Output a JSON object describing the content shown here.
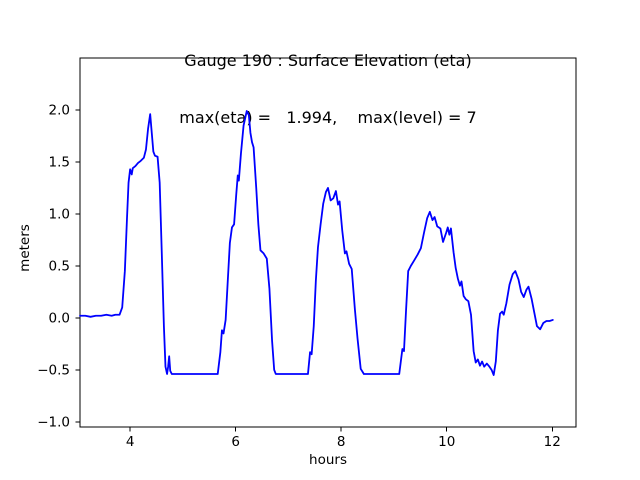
{
  "chart_data": {
    "type": "line",
    "title": "Gauge 190 : Surface Elevation (eta)",
    "subtitle": "max(eta) =   1.994,    max(level) = 7",
    "xlabel": "hours",
    "ylabel": "meters",
    "xlim": [
      3.05,
      12.45
    ],
    "ylim": [
      -1.05,
      2.5
    ],
    "xticks": [
      4,
      6,
      8,
      10,
      12
    ],
    "xtick_labels": [
      "4",
      "6",
      "8",
      "10",
      "12"
    ],
    "yticks": [
      -1.0,
      -0.5,
      0.0,
      0.5,
      1.0,
      1.5,
      2.0
    ],
    "ytick_labels": [
      "−1.0",
      "−0.5",
      "0.0",
      "0.5",
      "1.0",
      "1.5",
      "2.0"
    ],
    "grid": false,
    "legend_position": "none",
    "line_color": "#0000ff",
    "axis_color": "#000000",
    "background_color": "#ffffff",
    "max_eta": 1.994,
    "max_level": 7,
    "series": [
      {
        "name": "eta",
        "points": [
          [
            3.05,
            0.02
          ],
          [
            3.15,
            0.02
          ],
          [
            3.25,
            0.01
          ],
          [
            3.35,
            0.02
          ],
          [
            3.45,
            0.02
          ],
          [
            3.55,
            0.03
          ],
          [
            3.65,
            0.02
          ],
          [
            3.72,
            0.03
          ],
          [
            3.8,
            0.03
          ],
          [
            3.85,
            0.1
          ],
          [
            3.9,
            0.45
          ],
          [
            3.94,
            0.95
          ],
          [
            3.97,
            1.3
          ],
          [
            4.0,
            1.43
          ],
          [
            4.03,
            1.38
          ],
          [
            4.05,
            1.44
          ],
          [
            4.1,
            1.46
          ],
          [
            4.15,
            1.49
          ],
          [
            4.2,
            1.51
          ],
          [
            4.26,
            1.54
          ],
          [
            4.3,
            1.62
          ],
          [
            4.34,
            1.82
          ],
          [
            4.38,
            1.96
          ],
          [
            4.41,
            1.78
          ],
          [
            4.44,
            1.6
          ],
          [
            4.47,
            1.56
          ],
          [
            4.52,
            1.55
          ],
          [
            4.56,
            1.3
          ],
          [
            4.6,
            0.62
          ],
          [
            4.64,
            -0.08
          ],
          [
            4.67,
            -0.47
          ],
          [
            4.7,
            -0.54
          ],
          [
            4.72,
            -0.47
          ],
          [
            4.74,
            -0.37
          ],
          [
            4.76,
            -0.51
          ],
          [
            4.79,
            -0.54
          ],
          [
            4.95,
            -0.54
          ],
          [
            5.15,
            -0.54
          ],
          [
            5.35,
            -0.54
          ],
          [
            5.55,
            -0.54
          ],
          [
            5.66,
            -0.54
          ],
          [
            5.71,
            -0.33
          ],
          [
            5.74,
            -0.12
          ],
          [
            5.77,
            -0.15
          ],
          [
            5.81,
            -0.02
          ],
          [
            5.85,
            0.35
          ],
          [
            5.89,
            0.72
          ],
          [
            5.93,
            0.87
          ],
          [
            5.97,
            0.9
          ],
          [
            6.01,
            1.18
          ],
          [
            6.04,
            1.37
          ],
          [
            6.06,
            1.32
          ],
          [
            6.1,
            1.58
          ],
          [
            6.15,
            1.85
          ],
          [
            6.21,
            1.99
          ],
          [
            6.25,
            1.95
          ],
          [
            6.28,
            1.78
          ],
          [
            6.31,
            1.69
          ],
          [
            6.34,
            1.64
          ],
          [
            6.39,
            1.25
          ],
          [
            6.43,
            0.9
          ],
          [
            6.47,
            0.65
          ],
          [
            6.53,
            0.62
          ],
          [
            6.59,
            0.57
          ],
          [
            6.64,
            0.28
          ],
          [
            6.69,
            -0.22
          ],
          [
            6.73,
            -0.5
          ],
          [
            6.76,
            -0.54
          ],
          [
            6.95,
            -0.54
          ],
          [
            7.15,
            -0.54
          ],
          [
            7.37,
            -0.54
          ],
          [
            7.41,
            -0.33
          ],
          [
            7.44,
            -0.35
          ],
          [
            7.48,
            -0.08
          ],
          [
            7.52,
            0.36
          ],
          [
            7.56,
            0.68
          ],
          [
            7.61,
            0.9
          ],
          [
            7.66,
            1.1
          ],
          [
            7.71,
            1.21
          ],
          [
            7.75,
            1.25
          ],
          [
            7.8,
            1.13
          ],
          [
            7.85,
            1.15
          ],
          [
            7.9,
            1.22
          ],
          [
            7.94,
            1.09
          ],
          [
            7.97,
            1.12
          ],
          [
            8.02,
            0.84
          ],
          [
            8.07,
            0.62
          ],
          [
            8.1,
            0.64
          ],
          [
            8.15,
            0.52
          ],
          [
            8.2,
            0.47
          ],
          [
            8.26,
            0.08
          ],
          [
            8.31,
            -0.2
          ],
          [
            8.37,
            -0.49
          ],
          [
            8.43,
            -0.54
          ],
          [
            8.6,
            -0.54
          ],
          [
            8.85,
            -0.54
          ],
          [
            9.1,
            -0.54
          ],
          [
            9.16,
            -0.3
          ],
          [
            9.19,
            -0.32
          ],
          [
            9.23,
            0.08
          ],
          [
            9.27,
            0.45
          ],
          [
            9.32,
            0.5
          ],
          [
            9.38,
            0.55
          ],
          [
            9.45,
            0.61
          ],
          [
            9.51,
            0.67
          ],
          [
            9.57,
            0.82
          ],
          [
            9.63,
            0.96
          ],
          [
            9.68,
            1.02
          ],
          [
            9.73,
            0.94
          ],
          [
            9.77,
            0.97
          ],
          [
            9.82,
            0.88
          ],
          [
            9.88,
            0.86
          ],
          [
            9.93,
            0.73
          ],
          [
            9.99,
            0.82
          ],
          [
            10.02,
            0.87
          ],
          [
            10.05,
            0.8
          ],
          [
            10.08,
            0.86
          ],
          [
            10.13,
            0.63
          ],
          [
            10.17,
            0.48
          ],
          [
            10.21,
            0.38
          ],
          [
            10.25,
            0.31
          ],
          [
            10.28,
            0.35
          ],
          [
            10.32,
            0.21
          ],
          [
            10.36,
            0.18
          ],
          [
            10.41,
            0.16
          ],
          [
            10.46,
            0.03
          ],
          [
            10.51,
            -0.32
          ],
          [
            10.55,
            -0.43
          ],
          [
            10.59,
            -0.4
          ],
          [
            10.63,
            -0.46
          ],
          [
            10.67,
            -0.42
          ],
          [
            10.71,
            -0.47
          ],
          [
            10.76,
            -0.44
          ],
          [
            10.81,
            -0.47
          ],
          [
            10.85,
            -0.5
          ],
          [
            10.89,
            -0.55
          ],
          [
            10.93,
            -0.42
          ],
          [
            10.97,
            -0.12
          ],
          [
            11.01,
            0.04
          ],
          [
            11.05,
            0.06
          ],
          [
            11.08,
            0.03
          ],
          [
            11.13,
            0.14
          ],
          [
            11.19,
            0.32
          ],
          [
            11.25,
            0.42
          ],
          [
            11.3,
            0.45
          ],
          [
            11.36,
            0.37
          ],
          [
            11.41,
            0.25
          ],
          [
            11.46,
            0.2
          ],
          [
            11.51,
            0.27
          ],
          [
            11.55,
            0.3
          ],
          [
            11.61,
            0.18
          ],
          [
            11.66,
            0.05
          ],
          [
            11.71,
            -0.08
          ],
          [
            11.77,
            -0.11
          ],
          [
            11.83,
            -0.05
          ],
          [
            11.89,
            -0.03
          ],
          [
            11.95,
            -0.03
          ],
          [
            12.01,
            -0.02
          ]
        ]
      }
    ]
  }
}
